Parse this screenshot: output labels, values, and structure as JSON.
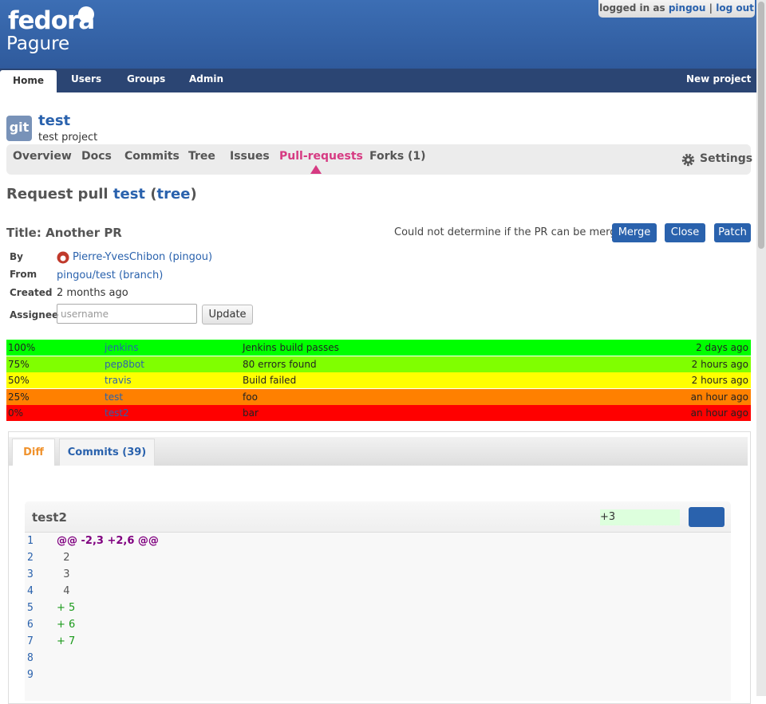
{
  "header": {
    "logo": "fedora",
    "app": "Pagure",
    "logged_in_as": "logged in as",
    "user": "pingou",
    "separator": "|",
    "logout": "log out"
  },
  "nav": {
    "items": [
      "Home",
      "Users",
      "Groups",
      "Admin"
    ],
    "new_project": "New project"
  },
  "project": {
    "icon": "git",
    "name": "test",
    "description": "test project"
  },
  "tabs": {
    "items": [
      "Overview",
      "Docs",
      "Commits",
      "Tree",
      "Issues",
      "Pull-requests",
      "Forks (1)"
    ],
    "settings": "Settings"
  },
  "heading": {
    "prefix": "Request pull",
    "project": "test",
    "open_paren": "(",
    "branch": "tree",
    "close_paren": ")"
  },
  "pr": {
    "title": "Title: Another PR",
    "merge_status": "Could not determine if the PR can be merged",
    "buttons": [
      "Merge",
      "Close",
      "Patch"
    ]
  },
  "details": {
    "by_label": "By",
    "by": "Pierre-YvesChibon (pingou)",
    "from_label": "From",
    "from": "pingou/test (branch)",
    "created_label": "Created",
    "created": "2 months ago",
    "assignee_label": "Assignee",
    "assignee_placeholder": "username",
    "update": "Update"
  },
  "flags": [
    {
      "percent": "100%",
      "user": "jenkins",
      "comment": "Jenkins build passes",
      "time": "2 days ago",
      "color": "#00ff00"
    },
    {
      "percent": "75%",
      "user": "pep8bot",
      "comment": "80 errors found",
      "time": "2 hours ago",
      "color": "#80ff00"
    },
    {
      "percent": "50%",
      "user": "travis",
      "comment": "Build failed",
      "time": "2 hours ago",
      "color": "#ffff00"
    },
    {
      "percent": "25%",
      "user": "test",
      "comment": "foo",
      "time": "an hour ago",
      "color": "#ff8000"
    },
    {
      "percent": "0%",
      "user": "test2",
      "comment": "bar",
      "time": "an hour ago",
      "color": "#ff0000"
    }
  ],
  "diff_tabs": [
    "Diff",
    "Commits (39)"
  ],
  "file": {
    "name": "test2",
    "stat": "+3",
    "lines": [
      {
        "n": 1,
        "text": "@@ -2,3 +2,6 @@"
      },
      {
        "n": 2,
        "text": "  2"
      },
      {
        "n": 3,
        "text": "  3"
      },
      {
        "n": 4,
        "text": "  4"
      },
      {
        "n": 5,
        "text": "+ 5"
      },
      {
        "n": 6,
        "text": "+ 6"
      },
      {
        "n": 7,
        "text": "+ 7"
      },
      {
        "n": 8
      },
      {
        "n": 9
      }
    ]
  }
}
